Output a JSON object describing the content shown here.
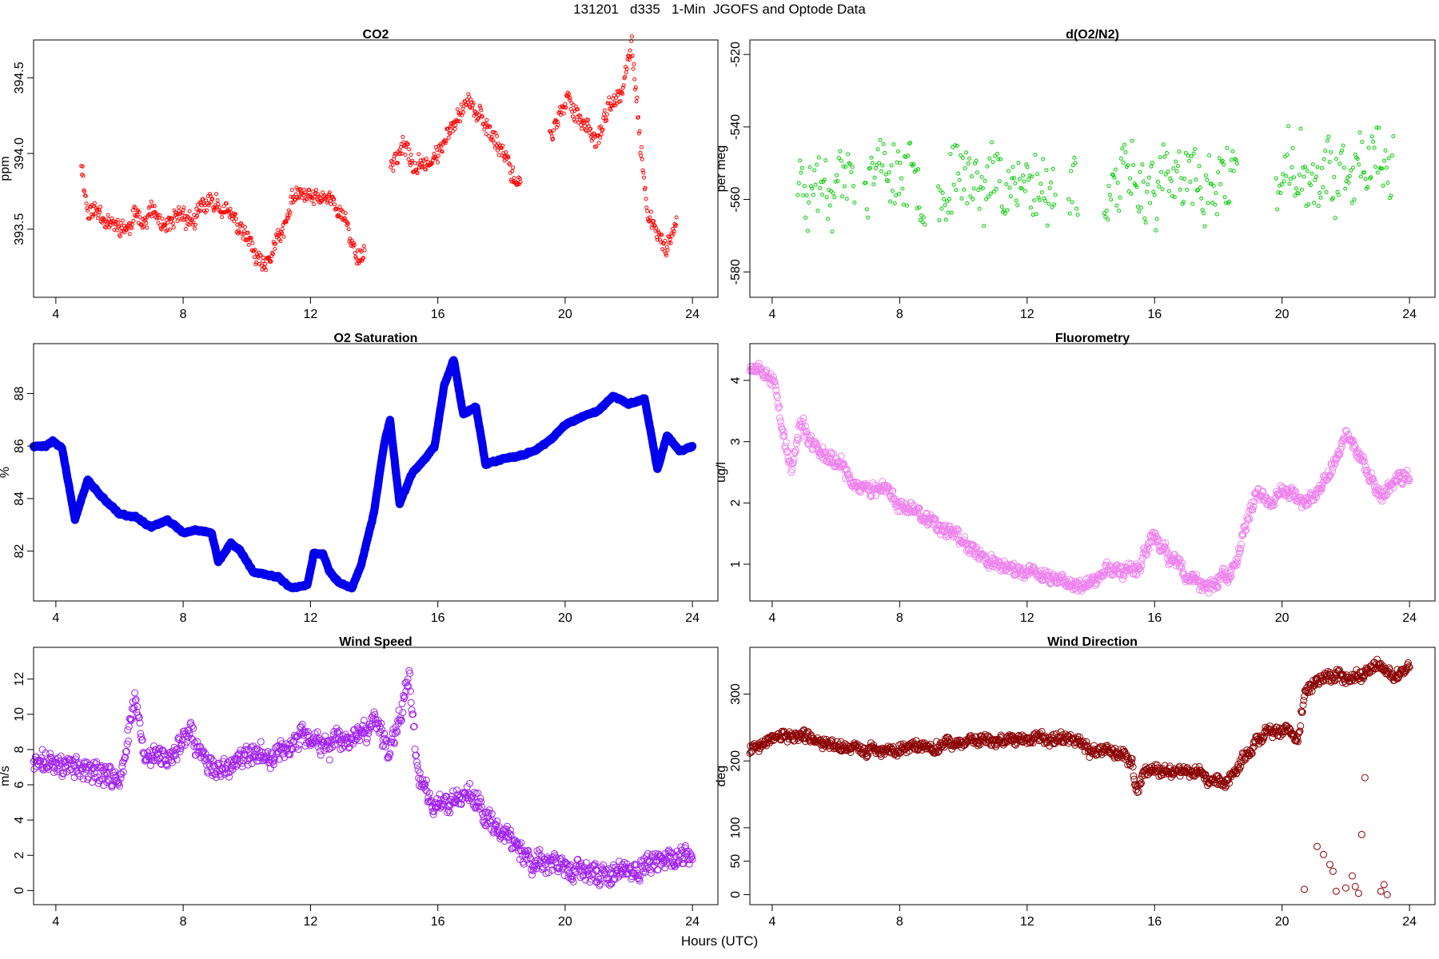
{
  "figure": {
    "title": "131201   d335   1-Min  JGOFS and Optode Data",
    "xlabel": "Hours (UTC)"
  },
  "chart_data": [
    {
      "id": "co2",
      "type": "scatter",
      "title": "CO2",
      "ylabel": "ppm",
      "color": "#ff0000",
      "marker": "small-open-circle",
      "xlim": [
        3.3,
        24.8
      ],
      "ylim": [
        393.05,
        394.75
      ],
      "xticks": [
        4,
        8,
        12,
        16,
        20,
        24
      ],
      "yticks": [
        393.5,
        394.0,
        394.5
      ],
      "ytick_labels": [
        "393.5",
        "394.0",
        "394.5"
      ],
      "anchors": [
        [
          4.8,
          393.95
        ],
        [
          5.0,
          393.62
        ],
        [
          5.4,
          393.62
        ],
        [
          5.8,
          393.52
        ],
        [
          6.3,
          393.5
        ],
        [
          6.6,
          393.62
        ],
        [
          6.8,
          393.55
        ],
        [
          7.0,
          393.62
        ],
        [
          7.5,
          393.48
        ],
        [
          7.9,
          393.6
        ],
        [
          8.4,
          393.55
        ],
        [
          8.6,
          393.65
        ],
        [
          9.1,
          393.68
        ],
        [
          9.6,
          393.55
        ],
        [
          10.0,
          393.45
        ],
        [
          10.3,
          393.3
        ],
        [
          10.6,
          393.22
        ],
        [
          10.9,
          393.42
        ],
        [
          11.2,
          393.48
        ],
        [
          11.4,
          393.7
        ],
        [
          11.8,
          393.72
        ],
        [
          12.2,
          393.7
        ],
        [
          12.6,
          393.72
        ],
        [
          13.0,
          393.6
        ],
        [
          13.4,
          393.35
        ],
        [
          13.6,
          393.32
        ],
        [
          14.6,
          393.95
        ],
        [
          14.9,
          394.05
        ],
        [
          15.3,
          393.9
        ],
        [
          15.7,
          393.95
        ],
        [
          16.1,
          394.0
        ],
        [
          16.4,
          394.2
        ],
        [
          16.7,
          394.3
        ],
        [
          17.0,
          394.35
        ],
        [
          17.4,
          394.2
        ],
        [
          17.8,
          394.1
        ],
        [
          18.1,
          394.0
        ],
        [
          18.5,
          393.8
        ],
        [
          19.6,
          394.15
        ],
        [
          20.1,
          394.35
        ],
        [
          20.6,
          394.2
        ],
        [
          21.0,
          394.1
        ],
        [
          21.4,
          394.3
        ],
        [
          21.8,
          394.4
        ],
        [
          22.1,
          394.7
        ],
        [
          22.3,
          394.2
        ],
        [
          22.6,
          393.6
        ],
        [
          22.9,
          393.45
        ],
        [
          23.2,
          393.38
        ],
        [
          23.5,
          393.5
        ]
      ],
      "gaps": [
        [
          13.7,
          14.5
        ],
        [
          18.6,
          19.5
        ]
      ],
      "step": 0.02,
      "noise": 0.07,
      "seed": 11
    },
    {
      "id": "do2n2",
      "type": "scatter",
      "title": "d(O2/N2)",
      "ylabel": "per meg",
      "color": "#00cc00",
      "marker": "small-open-circle",
      "xlim": [
        3.3,
        24.8
      ],
      "ylim": [
        -587,
        -516
      ],
      "xticks": [
        4,
        8,
        12,
        16,
        20,
        24
      ],
      "yticks": [
        -580,
        -560,
        -540,
        -520
      ],
      "ytick_labels": [
        "-580",
        "-560",
        "-540",
        "-520"
      ],
      "anchors": [
        [
          4.8,
          -555
        ],
        [
          6.0,
          -553
        ],
        [
          8.0,
          -552
        ],
        [
          9.5,
          -555
        ],
        [
          11.0,
          -554
        ],
        [
          12.5,
          -556
        ],
        [
          13.5,
          -556
        ],
        [
          14.8,
          -556
        ],
        [
          16.0,
          -556
        ],
        [
          17.5,
          -557
        ],
        [
          18.6,
          -553
        ],
        [
          19.9,
          -553
        ],
        [
          21.0,
          -554
        ],
        [
          22.5,
          -554
        ],
        [
          23.5,
          -552
        ]
      ],
      "gaps": [
        [
          6.6,
          6.9
        ],
        [
          8.8,
          9.2
        ],
        [
          12.9,
          13.3
        ],
        [
          13.6,
          14.4
        ],
        [
          18.6,
          19.8
        ]
      ],
      "step": 0.035,
      "noise": 11,
      "seed": 23
    },
    {
      "id": "o2sat",
      "type": "scatter",
      "title": "O2 Saturation",
      "ylabel": "%",
      "color": "#0000ee",
      "marker": "dense-open-circle",
      "xlim": [
        3.3,
        24.8
      ],
      "ylim": [
        80.1,
        89.9
      ],
      "xticks": [
        4,
        8,
        12,
        16,
        20,
        24
      ],
      "yticks": [
        82,
        84,
        86,
        88
      ],
      "ytick_labels": [
        "82",
        "84",
        "86",
        "88"
      ],
      "anchors": [
        [
          3.3,
          86.0
        ],
        [
          3.7,
          86.0
        ],
        [
          3.9,
          86.2
        ],
        [
          4.2,
          85.9
        ],
        [
          4.6,
          83.2
        ],
        [
          5.0,
          84.7
        ],
        [
          5.5,
          84.0
        ],
        [
          6.0,
          83.4
        ],
        [
          6.5,
          83.3
        ],
        [
          7.0,
          82.9
        ],
        [
          7.5,
          83.2
        ],
        [
          8.0,
          82.7
        ],
        [
          8.4,
          82.8
        ],
        [
          8.9,
          82.7
        ],
        [
          9.1,
          81.6
        ],
        [
          9.5,
          82.3
        ],
        [
          9.8,
          82.0
        ],
        [
          10.2,
          81.2
        ],
        [
          10.6,
          81.1
        ],
        [
          11.0,
          81.0
        ],
        [
          11.4,
          80.6
        ],
        [
          11.9,
          80.7
        ],
        [
          12.1,
          81.9
        ],
        [
          12.4,
          81.9
        ],
        [
          12.6,
          81.2
        ],
        [
          12.9,
          80.8
        ],
        [
          13.3,
          80.6
        ],
        [
          13.6,
          81.5
        ],
        [
          14.0,
          83.5
        ],
        [
          14.3,
          86.0
        ],
        [
          14.5,
          87.0
        ],
        [
          14.8,
          83.8
        ],
        [
          15.2,
          85.0
        ],
        [
          15.6,
          85.5
        ],
        [
          15.9,
          86.0
        ],
        [
          16.2,
          88.3
        ],
        [
          16.5,
          89.3
        ],
        [
          16.8,
          87.2
        ],
        [
          17.2,
          87.5
        ],
        [
          17.5,
          85.3
        ],
        [
          18.0,
          85.5
        ],
        [
          18.5,
          85.6
        ],
        [
          19.0,
          85.8
        ],
        [
          19.5,
          86.2
        ],
        [
          20.0,
          86.8
        ],
        [
          20.5,
          87.1
        ],
        [
          21.0,
          87.3
        ],
        [
          21.5,
          87.9
        ],
        [
          22.0,
          87.6
        ],
        [
          22.5,
          87.8
        ],
        [
          22.9,
          85.1
        ],
        [
          23.2,
          86.4
        ],
        [
          23.6,
          85.8
        ],
        [
          24.0,
          86.0
        ]
      ],
      "gaps": [],
      "step": 0.004,
      "noise": 0.1,
      "seed": 37
    },
    {
      "id": "fluor",
      "type": "scatter",
      "title": "Fluorometry",
      "ylabel": "ug/l",
      "color": "#ee82ee",
      "marker": "open-circle",
      "xlim": [
        3.3,
        24.8
      ],
      "ylim": [
        0.4,
        4.6
      ],
      "xticks": [
        4,
        8,
        12,
        16,
        20,
        24
      ],
      "yticks": [
        1,
        2,
        3,
        4
      ],
      "ytick_labels": [
        "1",
        "2",
        "3",
        "4"
      ],
      "anchors": [
        [
          3.3,
          4.25
        ],
        [
          3.8,
          4.2
        ],
        [
          4.1,
          3.9
        ],
        [
          4.4,
          3.0
        ],
        [
          4.6,
          2.5
        ],
        [
          4.9,
          3.3
        ],
        [
          5.3,
          2.9
        ],
        [
          5.8,
          2.7
        ],
        [
          6.2,
          2.6
        ],
        [
          6.6,
          2.3
        ],
        [
          7.2,
          2.2
        ],
        [
          7.6,
          2.2
        ],
        [
          8.0,
          1.95
        ],
        [
          8.6,
          1.9
        ],
        [
          9.0,
          1.7
        ],
        [
          9.6,
          1.55
        ],
        [
          10.2,
          1.3
        ],
        [
          10.6,
          1.1
        ],
        [
          11.0,
          1.0
        ],
        [
          11.6,
          0.9
        ],
        [
          12.1,
          0.85
        ],
        [
          12.6,
          0.8
        ],
        [
          13.0,
          0.75
        ],
        [
          13.6,
          0.7
        ],
        [
          14.1,
          0.72
        ],
        [
          14.5,
          0.95
        ],
        [
          15.0,
          0.85
        ],
        [
          15.5,
          1.0
        ],
        [
          16.0,
          1.45
        ],
        [
          16.5,
          1.1
        ],
        [
          17.0,
          0.8
        ],
        [
          17.5,
          0.65
        ],
        [
          18.0,
          0.7
        ],
        [
          18.5,
          0.9
        ],
        [
          18.8,
          1.5
        ],
        [
          19.2,
          2.2
        ],
        [
          19.6,
          2.0
        ],
        [
          20.0,
          2.2
        ],
        [
          20.6,
          2.0
        ],
        [
          21.0,
          2.1
        ],
        [
          21.5,
          2.5
        ],
        [
          22.0,
          3.1
        ],
        [
          22.4,
          2.8
        ],
        [
          22.9,
          2.2
        ],
        [
          23.3,
          2.2
        ],
        [
          23.7,
          2.5
        ],
        [
          24.0,
          2.4
        ]
      ],
      "gaps": [],
      "step": 0.02,
      "noise": 0.13,
      "seed": 53
    },
    {
      "id": "windspeed",
      "type": "scatter",
      "title": "Wind Speed",
      "ylabel": "m/s",
      "color": "#a020f0",
      "marker": "open-circle",
      "xlim": [
        3.3,
        24.8
      ],
      "ylim": [
        -0.8,
        13.8
      ],
      "xticks": [
        4,
        8,
        12,
        16,
        20,
        24
      ],
      "yticks": [
        0,
        2,
        4,
        6,
        8,
        10,
        12
      ],
      "ytick_labels": [
        "0",
        "2",
        "4",
        "6",
        "8",
        "10",
        "12"
      ],
      "anchors": [
        [
          3.3,
          7.2
        ],
        [
          4.0,
          7.3
        ],
        [
          5.0,
          6.8
        ],
        [
          6.0,
          6.3
        ],
        [
          6.5,
          10.8
        ],
        [
          6.8,
          7.5
        ],
        [
          7.5,
          7.5
        ],
        [
          8.2,
          8.8
        ],
        [
          8.7,
          7.2
        ],
        [
          9.2,
          6.8
        ],
        [
          10.0,
          7.5
        ],
        [
          11.0,
          7.8
        ],
        [
          11.8,
          8.8
        ],
        [
          12.5,
          8.2
        ],
        [
          13.5,
          8.5
        ],
        [
          14.0,
          9.5
        ],
        [
          14.5,
          8.0
        ],
        [
          15.1,
          12.2
        ],
        [
          15.4,
          6.5
        ],
        [
          15.8,
          5.0
        ],
        [
          16.5,
          5.2
        ],
        [
          17.0,
          5.5
        ],
        [
          17.5,
          4.5
        ],
        [
          18.0,
          3.5
        ],
        [
          18.5,
          2.5
        ],
        [
          19.0,
          1.5
        ],
        [
          20.0,
          1.2
        ],
        [
          21.0,
          0.8
        ],
        [
          22.0,
          1.0
        ],
        [
          23.0,
          1.8
        ],
        [
          24.0,
          1.8
        ]
      ],
      "gaps": [],
      "step": 0.02,
      "noise": 0.7,
      "seed": 71
    },
    {
      "id": "winddir",
      "type": "scatter",
      "title": "Wind Direction",
      "ylabel": "deg",
      "color": "#8b0000",
      "marker": "open-circle",
      "xlim": [
        3.3,
        24.8
      ],
      "ylim": [
        -15,
        370
      ],
      "xticks": [
        4,
        8,
        12,
        16,
        20,
        24
      ],
      "yticks": [
        0,
        50,
        100,
        200,
        300
      ],
      "ytick_labels": [
        "0",
        "50",
        "100",
        "200",
        "300"
      ],
      "anchors": [
        [
          3.3,
          215
        ],
        [
          4.0,
          235
        ],
        [
          5.0,
          240
        ],
        [
          5.6,
          225
        ],
        [
          6.5,
          220
        ],
        [
          7.5,
          215
        ],
        [
          8.5,
          220
        ],
        [
          9.5,
          225
        ],
        [
          10.5,
          230
        ],
        [
          11.5,
          230
        ],
        [
          12.5,
          235
        ],
        [
          13.5,
          235
        ],
        [
          14.0,
          215
        ],
        [
          14.8,
          210
        ],
        [
          15.3,
          200
        ],
        [
          15.4,
          160
        ],
        [
          15.8,
          185
        ],
        [
          16.5,
          190
        ],
        [
          17.5,
          180
        ],
        [
          18.2,
          165
        ],
        [
          18.8,
          205
        ],
        [
          19.5,
          240
        ],
        [
          20.1,
          245
        ],
        [
          20.5,
          230
        ],
        [
          20.7,
          300
        ],
        [
          21.2,
          320
        ],
        [
          21.8,
          330
        ],
        [
          22.4,
          325
        ],
        [
          23.0,
          345
        ],
        [
          23.5,
          325
        ],
        [
          24.0,
          340
        ]
      ],
      "gaps": [],
      "step": 0.02,
      "noise": 10,
      "seed": 89,
      "outliers": [
        [
          20.7,
          8
        ],
        [
          21.1,
          72
        ],
        [
          21.3,
          60
        ],
        [
          21.5,
          45
        ],
        [
          21.6,
          35
        ],
        [
          21.7,
          5
        ],
        [
          22.0,
          10
        ],
        [
          22.2,
          28
        ],
        [
          22.3,
          12
        ],
        [
          22.4,
          2
        ],
        [
          22.5,
          90
        ],
        [
          22.6,
          175
        ],
        [
          23.1,
          5
        ],
        [
          23.2,
          15
        ],
        [
          23.3,
          0
        ]
      ]
    }
  ]
}
